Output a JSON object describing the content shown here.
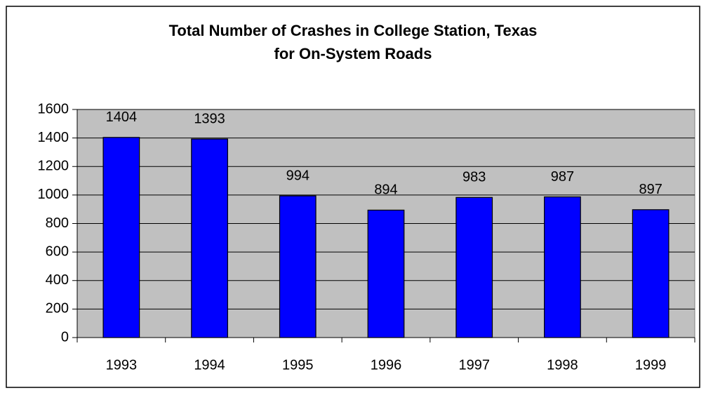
{
  "chart_data": {
    "type": "bar",
    "title": [
      "Total Number of Crashes in College Station, Texas",
      "for On-System Roads"
    ],
    "categories": [
      "1993",
      "1994",
      "1995",
      "1996",
      "1997",
      "1998",
      "1999"
    ],
    "values": [
      1404,
      1393,
      994,
      894,
      983,
      987,
      897
    ],
    "color": "#0000ff",
    "ylim": [
      0,
      1600
    ],
    "yticks": [
      0,
      200,
      400,
      600,
      800,
      1000,
      1200,
      1400,
      1600
    ],
    "grid": true
  }
}
